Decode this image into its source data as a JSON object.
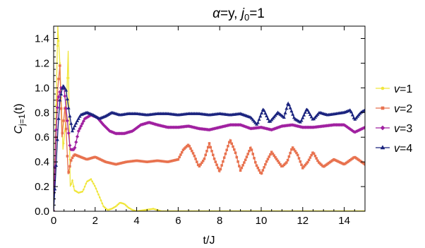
{
  "chart_data": {
    "type": "line",
    "title": {
      "alpha": "α",
      "alpha_val": "=y, ",
      "j": "j",
      "j_sub": "0",
      "j_val": "=1"
    },
    "xlabel": "t/J",
    "ylabel": {
      "main": "C",
      "sub": "j=1",
      "tail": "(t)"
    },
    "xlim": [
      0,
      15
    ],
    "ylim": [
      0,
      1.5
    ],
    "xticks": [
      0,
      2,
      4,
      6,
      8,
      10,
      12,
      14
    ],
    "yticks": [
      0.0,
      0.2,
      0.4,
      0.6,
      0.8,
      1.0,
      1.2,
      1.4
    ],
    "xtick_labels": [
      "0",
      "2",
      "4",
      "6",
      "8",
      "10",
      "12",
      "14"
    ],
    "ytick_labels": [
      "0.0",
      "0.2",
      "0.4",
      "0.6",
      "0.8",
      "1.0",
      "1.2",
      "1.4"
    ],
    "grid": false,
    "legend_position": "right",
    "series": [
      {
        "var": "v",
        "eq": "=1",
        "color": "#f0e63c",
        "marker": "circle",
        "x": [
          0,
          0.1,
          0.2,
          0.3,
          0.45,
          0.6,
          0.7,
          0.8,
          0.9,
          1.0,
          1.2,
          1.4,
          1.6,
          1.8,
          2.0,
          2.2,
          2.4,
          2.6,
          2.8,
          3.0,
          3.2,
          3.4,
          3.6,
          3.8,
          4.0,
          4.4,
          4.8,
          5.2,
          6,
          8,
          10,
          12,
          15
        ],
        "y": [
          0,
          0.7,
          1.5,
          1.2,
          0.5,
          0.75,
          1.3,
          0.2,
          0.25,
          0.17,
          0.15,
          0.16,
          0.24,
          0.26,
          0.2,
          0.12,
          0.04,
          0.01,
          0.02,
          0.04,
          0.07,
          0.06,
          0.03,
          0.01,
          0.0,
          0.01,
          0.02,
          0.0,
          0.0,
          0.0,
          0.0,
          0.0,
          0.0
        ]
      },
      {
        "var": "v",
        "eq": "=2",
        "color": "#e8724f",
        "marker": "square",
        "x": [
          0,
          0.1,
          0.2,
          0.3,
          0.4,
          0.55,
          0.7,
          0.85,
          1.0,
          1.3,
          1.6,
          2.0,
          2.5,
          3,
          3.5,
          4,
          4.5,
          5,
          5.5,
          6.0,
          6.25,
          6.5,
          6.75,
          7.0,
          7.25,
          7.5,
          7.75,
          8.0,
          8.25,
          8.5,
          8.75,
          9.0,
          9.25,
          9.5,
          9.75,
          10.0,
          10.25,
          10.5,
          10.75,
          11.0,
          11.25,
          11.5,
          11.75,
          12.0,
          12.25,
          12.5,
          12.75,
          13.0,
          13.5,
          14.0,
          14.5,
          15.0
        ],
        "y": [
          0,
          0.5,
          1.0,
          1.18,
          0.6,
          0.85,
          0.3,
          0.42,
          0.46,
          0.44,
          0.42,
          0.44,
          0.4,
          0.38,
          0.4,
          0.41,
          0.4,
          0.41,
          0.4,
          0.42,
          0.5,
          0.54,
          0.46,
          0.36,
          0.42,
          0.55,
          0.42,
          0.32,
          0.45,
          0.58,
          0.48,
          0.33,
          0.42,
          0.52,
          0.38,
          0.3,
          0.4,
          0.48,
          0.42,
          0.36,
          0.4,
          0.52,
          0.46,
          0.35,
          0.4,
          0.48,
          0.4,
          0.36,
          0.42,
          0.38,
          0.44,
          0.38
        ]
      },
      {
        "var": "v",
        "eq": "=3",
        "color": "#a020a0",
        "marker": "diamond",
        "x": [
          0,
          0.1,
          0.2,
          0.35,
          0.5,
          0.65,
          0.8,
          1.0,
          1.2,
          1.5,
          1.8,
          2.1,
          2.4,
          2.7,
          3.0,
          3.4,
          3.8,
          4.2,
          4.6,
          5.0,
          5.5,
          6.0,
          6.5,
          7.0,
          7.5,
          8.0,
          8.5,
          9.0,
          9.5,
          10.0,
          10.5,
          11.0,
          11.5,
          12.0,
          12.5,
          13.0,
          13.5,
          14.0,
          14.5,
          15.0
        ],
        "y": [
          0,
          0.6,
          0.9,
          1.0,
          1.0,
          0.75,
          0.5,
          0.5,
          0.65,
          0.75,
          0.78,
          0.76,
          0.7,
          0.65,
          0.63,
          0.63,
          0.65,
          0.7,
          0.72,
          0.7,
          0.68,
          0.68,
          0.69,
          0.67,
          0.66,
          0.68,
          0.7,
          0.7,
          0.67,
          0.68,
          0.66,
          0.69,
          0.7,
          0.68,
          0.68,
          0.69,
          0.7,
          0.7,
          0.64,
          0.68
        ]
      },
      {
        "var": "v",
        "eq": "=4",
        "color": "#1a237e",
        "marker": "triangle",
        "x": [
          0,
          0.1,
          0.2,
          0.3,
          0.45,
          0.6,
          0.75,
          0.9,
          1.1,
          1.3,
          1.6,
          1.9,
          2.2,
          2.5,
          2.8,
          3.2,
          3.6,
          4.0,
          4.5,
          5.0,
          5.5,
          6.0,
          6.5,
          7.0,
          7.5,
          8.0,
          8.5,
          9.0,
          9.5,
          9.8,
          10.1,
          10.4,
          10.8,
          11.1,
          11.3,
          11.6,
          11.9,
          12.2,
          12.5,
          12.8,
          13.2,
          13.6,
          14.0,
          14.3,
          14.5,
          14.8,
          15.0
        ],
        "y": [
          0,
          0.3,
          0.65,
          0.9,
          1.02,
          0.98,
          0.8,
          0.65,
          0.72,
          0.78,
          0.8,
          0.78,
          0.75,
          0.77,
          0.8,
          0.78,
          0.79,
          0.79,
          0.78,
          0.79,
          0.79,
          0.78,
          0.79,
          0.79,
          0.78,
          0.79,
          0.78,
          0.79,
          0.76,
          0.7,
          0.83,
          0.72,
          0.8,
          0.76,
          0.88,
          0.75,
          0.72,
          0.83,
          0.74,
          0.8,
          0.78,
          0.79,
          0.8,
          0.82,
          0.74,
          0.8,
          0.82
        ]
      }
    ]
  }
}
